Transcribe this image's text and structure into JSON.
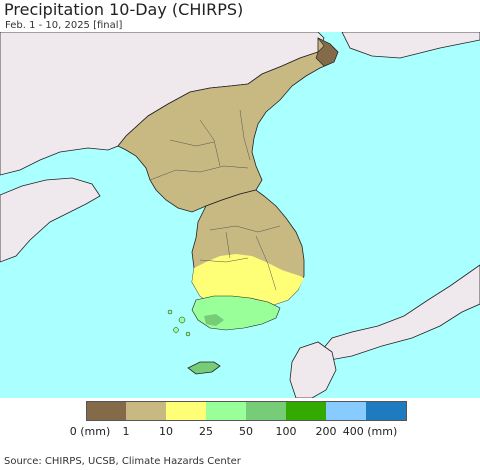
{
  "header": {
    "title": "Precipitation 10-Day (CHIRPS)",
    "subtitle": "Feb. 1 - 10, 2025 [final]"
  },
  "map": {
    "colors": {
      "sea": "#aaffff",
      "other_land": "#efe9ee",
      "border": "#222222",
      "level_0": "#836a48",
      "level_1": "#c8b882",
      "level_10": "#ffff77",
      "level_25": "#99ff99",
      "level_50": "#77cc77",
      "level_100": "#33aa00",
      "level_200": "#88ccff",
      "level_400": "#1f7bbf"
    }
  },
  "legend": {
    "swatches": [
      {
        "color": "#836a48"
      },
      {
        "color": "#c8b882"
      },
      {
        "color": "#ffff77"
      },
      {
        "color": "#99ff99"
      },
      {
        "color": "#77cc77"
      },
      {
        "color": "#33aa00"
      },
      {
        "color": "#88ccff"
      },
      {
        "color": "#1f7bbf"
      }
    ],
    "ticks": [
      "0 (mm)",
      "1",
      "10",
      "25",
      "50",
      "100",
      "200",
      "400 (mm)"
    ]
  },
  "footer": {
    "source": "Source: CHIRPS, UCSB, Climate Hazards Center"
  }
}
